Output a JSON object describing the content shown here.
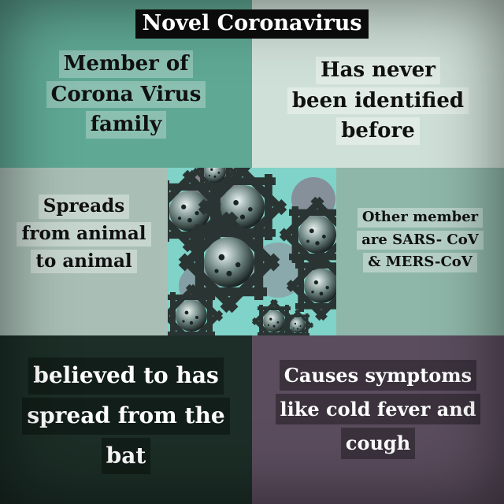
{
  "title": "Novel Coronavirus",
  "cells": {
    "top_left": [
      "Member of",
      "Corona Virus",
      "family"
    ],
    "top_right": [
      "Has never",
      "been identified",
      "before"
    ],
    "mid_left": [
      "Spreads",
      "from animal",
      "to animal"
    ],
    "mid_right": [
      "Other member",
      "are SARS- CoV",
      "& MERS-CoV"
    ],
    "bottom_left": [
      "believed to has",
      "spread from the",
      "bat"
    ],
    "bottom_right": [
      "Causes symptoms",
      "like cold fever and",
      "cough"
    ]
  },
  "colors": {
    "top_left_bg": "#5fa894",
    "top_right_bg": "#cfe0d8",
    "mid_left_bg": "#a9bfb6",
    "mid_right_bg": "#8fb7a9",
    "bottom_left_bg": "#1c2e27",
    "bottom_right_bg": "#5b4d5e",
    "virus_bg": "#7fd3c8",
    "title_bg": "#0b0b0b"
  }
}
